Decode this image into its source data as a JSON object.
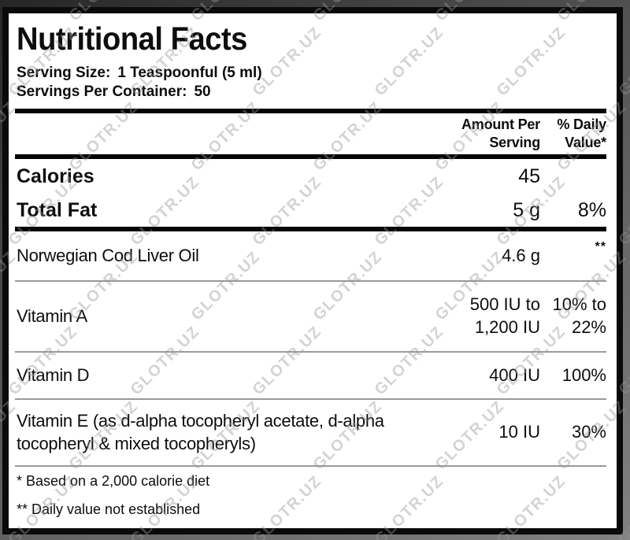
{
  "watermark": {
    "text": "GLOTR.UZ"
  },
  "label": {
    "title": "Nutritional Facts",
    "serving": {
      "size_label": "Serving Size:",
      "size_value": "1 Teaspoonful (5 ml)",
      "per_container_label": "Servings Per Container:",
      "per_container_value": "50"
    },
    "header": {
      "amount": "Amount Per Serving",
      "daily_value": "% Daily Value*"
    },
    "rows": [
      {
        "name": "Calories",
        "amount": "45",
        "dv": ""
      },
      {
        "name": "Total Fat",
        "amount": "5 g",
        "dv": "8%"
      },
      {
        "name": "Norwegian Cod Liver Oil",
        "amount": "4.6 g",
        "dv": "**"
      },
      {
        "name": "Vitamin A",
        "amount": "500 IU to 1,200 IU",
        "dv": "10% to 22%"
      },
      {
        "name": "Vitamin D",
        "amount": "400 IU",
        "dv": "100%"
      },
      {
        "name": "Vitamin E (as d-alpha tocopheryl acetate, d-alpha tocopheryl & mixed tocopheryls)",
        "amount": "10 IU",
        "dv": "30%"
      }
    ],
    "footnotes": [
      "* Based on a 2,000 calorie diet",
      "** Daily value not established"
    ],
    "colors": {
      "label_bg": "#ffffff",
      "border": "#0a0a0a",
      "thick_rule": "#050505",
      "thin_rule": "#9a9a9a",
      "text": "#0d0d0d",
      "watermark": "#bdbdbd"
    }
  }
}
